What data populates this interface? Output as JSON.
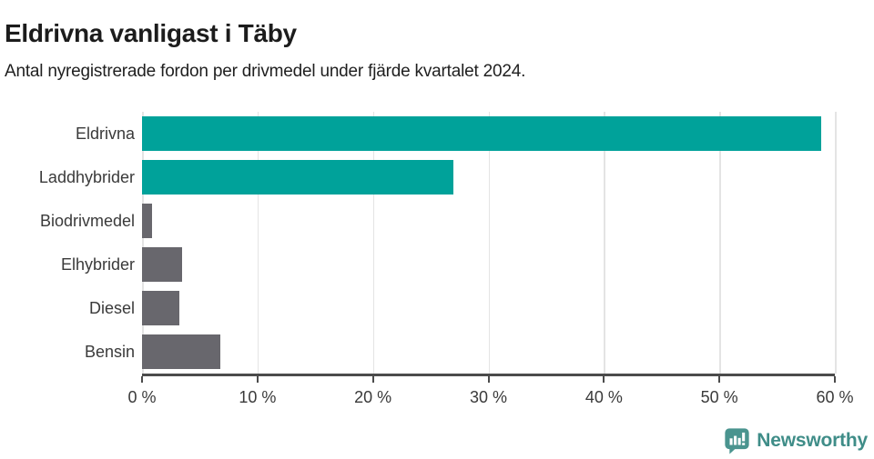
{
  "header": {
    "title": "Eldrivna vanligast i Täby",
    "subtitle": "Antal nyregistrerade fordon per drivmedel under fjärde kvartalet 2024."
  },
  "chart_data": {
    "type": "bar",
    "orientation": "horizontal",
    "title": "Eldrivna vanligast i Täby",
    "subtitle": "Antal nyregistrerade fordon per drivmedel under fjärde kvartalet 2024.",
    "xlabel": "",
    "ylabel": "",
    "categories": [
      "Eldrivna",
      "Laddhybrider",
      "Biodrivmedel",
      "Elhybrider",
      "Diesel",
      "Bensin"
    ],
    "values": [
      58.8,
      27.0,
      0.9,
      3.5,
      3.2,
      6.8
    ],
    "unit": "%",
    "bar_colors": [
      "#00a29a",
      "#00a29a",
      "#68676d",
      "#68676d",
      "#68676d",
      "#68676d"
    ],
    "xlim": [
      0,
      60
    ],
    "x_ticks": [
      0,
      10,
      20,
      30,
      40,
      50,
      60
    ],
    "x_tick_labels": [
      "0 %",
      "10 %",
      "20 %",
      "30 %",
      "40 %",
      "50 %",
      "60 %"
    ],
    "grid": true,
    "legend": false
  },
  "branding": {
    "logo_text": "Newsworthy",
    "logo_icon": "bar-chart-speech-bubble-icon"
  },
  "colors": {
    "accent_teal": "#00a29a",
    "bar_gray": "#68676d",
    "axis_line": "#4b4b4b",
    "gridline": "#e4e4e4",
    "logo_teal": "#3f8d88",
    "logo_icon_fill": "#4a948f"
  }
}
